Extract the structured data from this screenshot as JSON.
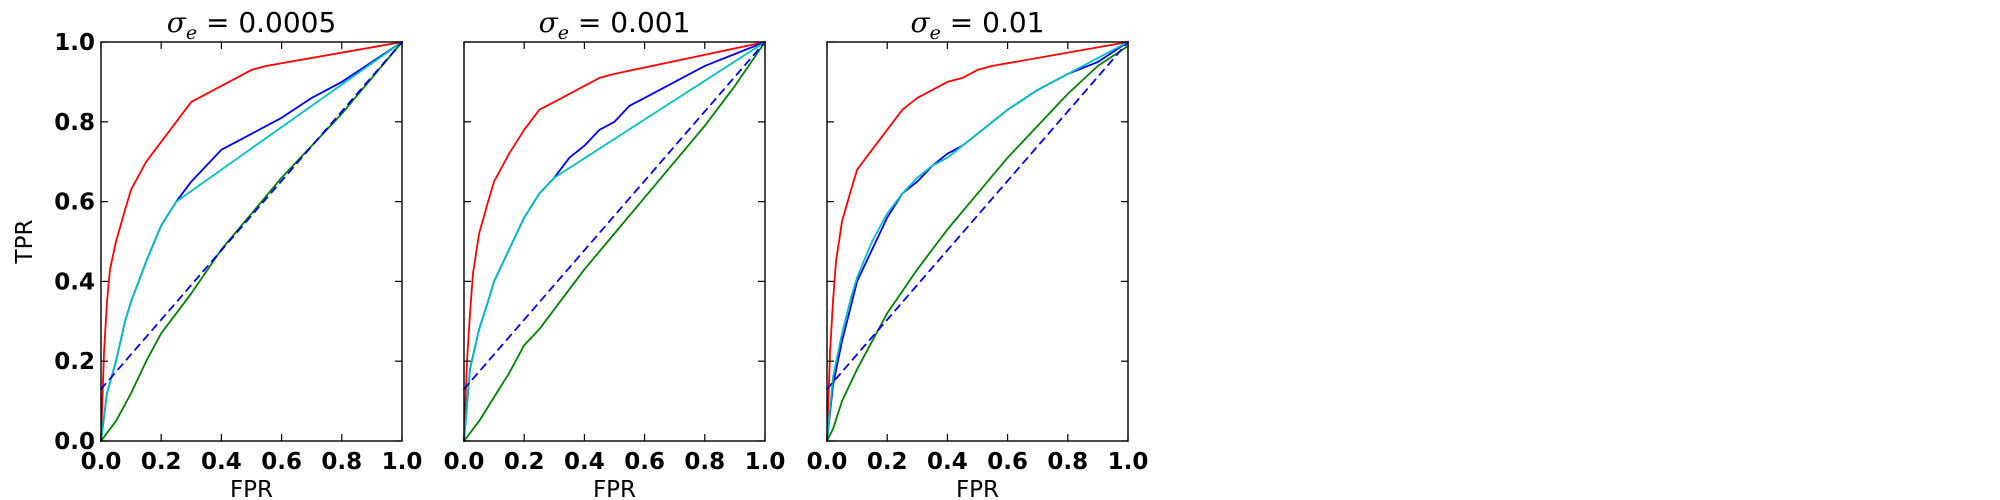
{
  "chart_data": [
    {
      "type": "line",
      "title": "σe = 0.0005",
      "title_parts": {
        "symbol": "σ",
        "subscript": "e",
        "rest": " = 0.0005"
      },
      "xlabel": "FPR",
      "ylabel": "TPR",
      "xlim": [
        0.0,
        1.0
      ],
      "ylim": [
        0.0,
        1.0
      ],
      "xticks": [
        "0.0",
        "0.2",
        "0.4",
        "0.6",
        "0.8",
        "1.0"
      ],
      "yticks": [
        "0.0",
        "0.2",
        "0.4",
        "0.6",
        "0.8",
        "1.0"
      ],
      "grid": false,
      "series": [
        {
          "color": "#ff0000",
          "style": "solid",
          "points": [
            [
              0,
              0
            ],
            [
              0.01,
              0.22
            ],
            [
              0.02,
              0.35
            ],
            [
              0.03,
              0.43
            ],
            [
              0.05,
              0.5
            ],
            [
              0.08,
              0.58
            ],
            [
              0.1,
              0.63
            ],
            [
              0.15,
              0.7
            ],
            [
              0.2,
              0.75
            ],
            [
              0.25,
              0.8
            ],
            [
              0.3,
              0.85
            ],
            [
              0.35,
              0.87
            ],
            [
              0.4,
              0.89
            ],
            [
              0.45,
              0.91
            ],
            [
              0.5,
              0.93
            ],
            [
              0.55,
              0.94
            ],
            [
              1,
              1
            ]
          ]
        },
        {
          "color": "#0000ee",
          "style": "solid",
          "points": [
            [
              0,
              0
            ],
            [
              0.02,
              0.12
            ],
            [
              0.05,
              0.2
            ],
            [
              0.08,
              0.3
            ],
            [
              0.1,
              0.35
            ],
            [
              0.15,
              0.45
            ],
            [
              0.2,
              0.54
            ],
            [
              0.25,
              0.6
            ],
            [
              0.3,
              0.65
            ],
            [
              0.35,
              0.69
            ],
            [
              0.4,
              0.73
            ],
            [
              0.45,
              0.75
            ],
            [
              0.5,
              0.77
            ],
            [
              0.6,
              0.81
            ],
            [
              0.7,
              0.86
            ],
            [
              0.8,
              0.9
            ],
            [
              0.9,
              0.95
            ],
            [
              1,
              1
            ]
          ]
        },
        {
          "color": "#00bfbf",
          "style": "solid",
          "points": [
            [
              0,
              0
            ],
            [
              0.02,
              0.12
            ],
            [
              0.05,
              0.2
            ],
            [
              0.08,
              0.3
            ],
            [
              0.1,
              0.35
            ],
            [
              0.15,
              0.45
            ],
            [
              0.2,
              0.54
            ],
            [
              0.25,
              0.6
            ],
            [
              1,
              1
            ]
          ]
        },
        {
          "color": "#008000",
          "style": "solid",
          "points": [
            [
              0,
              0
            ],
            [
              0.05,
              0.05
            ],
            [
              0.1,
              0.12
            ],
            [
              0.15,
              0.2
            ],
            [
              0.2,
              0.27
            ],
            [
              0.3,
              0.37
            ],
            [
              0.4,
              0.48
            ],
            [
              0.5,
              0.57
            ],
            [
              0.6,
              0.66
            ],
            [
              0.7,
              0.74
            ],
            [
              0.8,
              0.82
            ],
            [
              0.9,
              0.91
            ],
            [
              1,
              1
            ]
          ]
        },
        {
          "color": "#0000ee",
          "style": "dashed",
          "points": [
            [
              0,
              0.13
            ],
            [
              1,
              1
            ]
          ]
        }
      ]
    },
    {
      "type": "line",
      "title": "σe = 0.001",
      "title_parts": {
        "symbol": "σ",
        "subscript": "e",
        "rest": " = 0.001"
      },
      "xlabel": "FPR",
      "ylabel": "",
      "xlim": [
        0.0,
        1.0
      ],
      "ylim": [
        0.0,
        1.0
      ],
      "xticks": [
        "0.0",
        "0.2",
        "0.4",
        "0.6",
        "0.8",
        "1.0"
      ],
      "yticks": [],
      "grid": false,
      "series": [
        {
          "color": "#ff0000",
          "style": "solid",
          "points": [
            [
              0,
              0
            ],
            [
              0.01,
              0.2
            ],
            [
              0.02,
              0.32
            ],
            [
              0.03,
              0.42
            ],
            [
              0.05,
              0.52
            ],
            [
              0.08,
              0.6
            ],
            [
              0.1,
              0.65
            ],
            [
              0.15,
              0.72
            ],
            [
              0.2,
              0.78
            ],
            [
              0.25,
              0.83
            ],
            [
              0.3,
              0.85
            ],
            [
              0.35,
              0.87
            ],
            [
              0.4,
              0.89
            ],
            [
              0.45,
              0.91
            ],
            [
              0.5,
              0.92
            ],
            [
              1,
              1
            ]
          ]
        },
        {
          "color": "#0000ee",
          "style": "solid",
          "points": [
            [
              0,
              0
            ],
            [
              0.02,
              0.18
            ],
            [
              0.05,
              0.28
            ],
            [
              0.08,
              0.35
            ],
            [
              0.1,
              0.4
            ],
            [
              0.15,
              0.48
            ],
            [
              0.2,
              0.56
            ],
            [
              0.25,
              0.62
            ],
            [
              0.3,
              0.66
            ],
            [
              0.35,
              0.71
            ],
            [
              0.4,
              0.74
            ],
            [
              0.45,
              0.78
            ],
            [
              0.5,
              0.8
            ],
            [
              0.55,
              0.84
            ],
            [
              0.6,
              0.86
            ],
            [
              0.7,
              0.9
            ],
            [
              0.8,
              0.94
            ],
            [
              0.9,
              0.97
            ],
            [
              1,
              1
            ]
          ]
        },
        {
          "color": "#00bfbf",
          "style": "solid",
          "points": [
            [
              0,
              0
            ],
            [
              0.02,
              0.18
            ],
            [
              0.05,
              0.28
            ],
            [
              0.08,
              0.35
            ],
            [
              0.1,
              0.4
            ],
            [
              0.15,
              0.48
            ],
            [
              0.2,
              0.56
            ],
            [
              0.25,
              0.62
            ],
            [
              0.3,
              0.66
            ],
            [
              1,
              1
            ]
          ]
        },
        {
          "color": "#008000",
          "style": "solid",
          "points": [
            [
              0,
              0
            ],
            [
              0.05,
              0.05
            ],
            [
              0.1,
              0.11
            ],
            [
              0.15,
              0.17
            ],
            [
              0.2,
              0.24
            ],
            [
              0.25,
              0.28
            ],
            [
              0.3,
              0.33
            ],
            [
              0.4,
              0.43
            ],
            [
              0.5,
              0.52
            ],
            [
              0.6,
              0.61
            ],
            [
              0.7,
              0.7
            ],
            [
              0.8,
              0.79
            ],
            [
              0.9,
              0.89
            ],
            [
              1,
              1
            ]
          ]
        },
        {
          "color": "#0000ee",
          "style": "dashed",
          "points": [
            [
              0,
              0.13
            ],
            [
              1,
              1
            ]
          ]
        }
      ]
    },
    {
      "type": "line",
      "title": "σe = 0.01",
      "title_parts": {
        "symbol": "σ",
        "subscript": "e",
        "rest": " = 0.01"
      },
      "xlabel": "FPR",
      "ylabel": "",
      "xlim": [
        0.0,
        1.0
      ],
      "ylim": [
        0.0,
        1.0
      ],
      "xticks": [
        "0.0",
        "0.2",
        "0.4",
        "0.6",
        "0.8",
        "1.0"
      ],
      "yticks": [],
      "grid": false,
      "series": [
        {
          "color": "#ff0000",
          "style": "solid",
          "points": [
            [
              0,
              0
            ],
            [
              0.01,
              0.22
            ],
            [
              0.02,
              0.35
            ],
            [
              0.03,
              0.45
            ],
            [
              0.05,
              0.55
            ],
            [
              0.08,
              0.63
            ],
            [
              0.1,
              0.68
            ],
            [
              0.15,
              0.73
            ],
            [
              0.2,
              0.78
            ],
            [
              0.25,
              0.83
            ],
            [
              0.3,
              0.86
            ],
            [
              0.35,
              0.88
            ],
            [
              0.4,
              0.9
            ],
            [
              0.45,
              0.91
            ],
            [
              0.5,
              0.93
            ],
            [
              0.55,
              0.94
            ],
            [
              1,
              1
            ]
          ]
        },
        {
          "color": "#0000ee",
          "style": "solid",
          "points": [
            [
              0,
              0
            ],
            [
              0.02,
              0.14
            ],
            [
              0.05,
              0.25
            ],
            [
              0.08,
              0.34
            ],
            [
              0.1,
              0.4
            ],
            [
              0.15,
              0.48
            ],
            [
              0.2,
              0.56
            ],
            [
              0.25,
              0.62
            ],
            [
              0.3,
              0.65
            ],
            [
              0.35,
              0.69
            ],
            [
              0.4,
              0.72
            ],
            [
              0.45,
              0.74
            ],
            [
              0.5,
              0.77
            ],
            [
              0.55,
              0.8
            ],
            [
              0.6,
              0.83
            ],
            [
              0.7,
              0.88
            ],
            [
              0.8,
              0.92
            ],
            [
              0.9,
              0.95
            ],
            [
              1,
              1
            ]
          ]
        },
        {
          "color": "#00bfbf",
          "style": "solid",
          "points": [
            [
              0,
              0
            ],
            [
              0.02,
              0.16
            ],
            [
              0.05,
              0.27
            ],
            [
              0.08,
              0.36
            ],
            [
              0.1,
              0.41
            ],
            [
              0.15,
              0.5
            ],
            [
              0.2,
              0.57
            ],
            [
              0.25,
              0.62
            ],
            [
              0.3,
              0.66
            ],
            [
              0.35,
              0.69
            ],
            [
              0.4,
              0.71
            ],
            [
              0.45,
              0.74
            ],
            [
              0.5,
              0.77
            ],
            [
              0.55,
              0.8
            ],
            [
              0.6,
              0.83
            ],
            [
              0.7,
              0.88
            ],
            [
              0.8,
              0.92
            ],
            [
              0.9,
              0.96
            ],
            [
              1,
              1
            ]
          ]
        },
        {
          "color": "#008000",
          "style": "solid",
          "points": [
            [
              0,
              0
            ],
            [
              0.02,
              0.03
            ],
            [
              0.05,
              0.1
            ],
            [
              0.1,
              0.18
            ],
            [
              0.15,
              0.25
            ],
            [
              0.2,
              0.32
            ],
            [
              0.3,
              0.43
            ],
            [
              0.4,
              0.53
            ],
            [
              0.5,
              0.62
            ],
            [
              0.6,
              0.71
            ],
            [
              0.7,
              0.79
            ],
            [
              0.8,
              0.87
            ],
            [
              0.9,
              0.94
            ],
            [
              1,
              0.99
            ]
          ]
        },
        {
          "color": "#0000ee",
          "style": "dashed",
          "points": [
            [
              0,
              0.13
            ],
            [
              1,
              1
            ]
          ]
        }
      ]
    }
  ]
}
